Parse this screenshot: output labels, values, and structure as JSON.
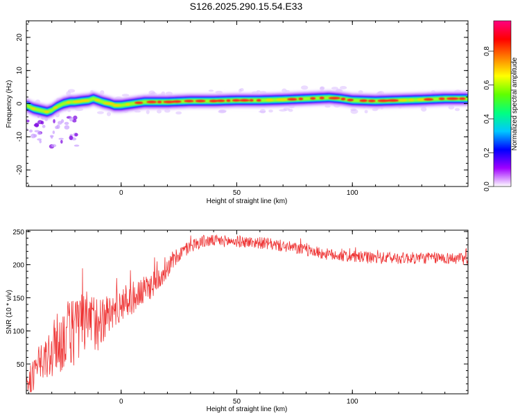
{
  "title": "S126.2025.290.15.54.E33",
  "chart_data": [
    {
      "type": "heatmap",
      "xlabel": "Height of straight line (km)",
      "ylabel": "Frequency (Hz)",
      "xlim": [
        -41,
        150
      ],
      "ylim": [
        -25,
        25
      ],
      "x_ticks": [
        0,
        50,
        100
      ],
      "y_ticks": [
        -20,
        -10,
        0,
        10,
        20
      ],
      "ridge": {
        "x": [
          -41,
          -38,
          -35,
          -32,
          -30,
          -28,
          -25,
          -22,
          -20,
          -17,
          -14,
          -12,
          -10,
          -8,
          -5,
          -3,
          0,
          5,
          10,
          20,
          30,
          40,
          50,
          60,
          70,
          80,
          90,
          95,
          100,
          110,
          120,
          130,
          140,
          150
        ],
        "freq": [
          -0.5,
          -1.5,
          -2.0,
          -2.5,
          -2.0,
          -1.0,
          0.0,
          0.5,
          0.5,
          0.8,
          1.0,
          1.5,
          1.0,
          0.5,
          0.0,
          -0.5,
          -0.5,
          0.0,
          0.5,
          0.5,
          0.8,
          0.8,
          1.0,
          1.0,
          1.2,
          1.5,
          1.8,
          1.5,
          1.0,
          0.8,
          1.0,
          1.2,
          1.5,
          1.5
        ]
      },
      "colorbar": {
        "label": "Normalized spectral amplitude",
        "ticks": [
          "0.0",
          "0.2",
          "0.4",
          "0.6",
          "0.8"
        ],
        "tick_values": [
          0.0,
          0.2,
          0.4,
          0.6,
          0.8
        ],
        "range": [
          0,
          0.98
        ],
        "colors": [
          "#ffffff",
          "#a000ff",
          "#0000ff",
          "#00c8ff",
          "#00ff80",
          "#60ff00",
          "#ffff00",
          "#ff8000",
          "#ff0000",
          "#ff0080"
        ]
      }
    },
    {
      "type": "line",
      "xlabel": "Height of straight line (km)",
      "ylabel": "SNR (10 * v/v)",
      "xlim": [
        -41,
        150
      ],
      "ylim": [
        5,
        252
      ],
      "x_ticks": [
        0,
        50,
        100
      ],
      "y_ticks": [
        50,
        100,
        150,
        200,
        250
      ],
      "series": [
        {
          "color": "#ee3333",
          "x": [
            -41,
            -35,
            -30,
            -25,
            -20,
            -15,
            -10,
            -5,
            0,
            5,
            10,
            15,
            20,
            25,
            30,
            35,
            40,
            50,
            60,
            70,
            80,
            90,
            100,
            110,
            120,
            130,
            140,
            150
          ],
          "mean": [
            20,
            45,
            70,
            90,
            100,
            110,
            115,
            125,
            140,
            150,
            160,
            175,
            195,
            215,
            228,
            235,
            236,
            235,
            233,
            228,
            222,
            215,
            212,
            210,
            210,
            210,
            210,
            208
          ],
          "amp": [
            18,
            30,
            45,
            50,
            55,
            50,
            45,
            30,
            25,
            25,
            22,
            20,
            15,
            12,
            10,
            10,
            9,
            9,
            9,
            9,
            9,
            9,
            9,
            9,
            9,
            9,
            9,
            9
          ]
        }
      ]
    }
  ]
}
